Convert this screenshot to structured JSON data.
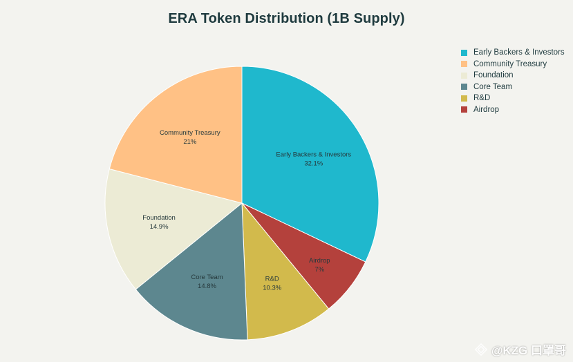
{
  "chart_data": {
    "type": "pie",
    "title": "ERA Token Distribution (1B Supply)",
    "slices": [
      {
        "label": "Early Backers & Investors",
        "value": 32.1,
        "display": "32.1%",
        "color": "#1fb8cd"
      },
      {
        "label": "Airdrop",
        "value": 7,
        "display": "7%",
        "color": "#b4413c"
      },
      {
        "label": "R&D",
        "value": 10.3,
        "display": "10.3%",
        "color": "#d2ba4c"
      },
      {
        "label": "Core Team",
        "value": 14.8,
        "display": "14.8%",
        "color": "#5d878f"
      },
      {
        "label": "Foundation",
        "value": 14.9,
        "display": "14.9%",
        "color": "#ecebd5"
      },
      {
        "label": "Community Treasury",
        "value": 21,
        "display": "21%",
        "color": "#ffc185"
      }
    ],
    "legend": {
      "placement": "top-right",
      "entries": [
        {
          "label": "Early Backers & Investors",
          "color": "#1fb8cd"
        },
        {
          "label": "Community Treasury",
          "color": "#ffc185"
        },
        {
          "label": "Foundation",
          "color": "#ecebd5"
        },
        {
          "label": "Core Team",
          "color": "#5d878f"
        },
        {
          "label": "R&D",
          "color": "#d2ba4c"
        },
        {
          "label": "Airdrop",
          "color": "#b4413c"
        }
      ]
    }
  },
  "watermark": {
    "text": "@KZG 口罩哥",
    "icon": "diamond-logo-icon"
  }
}
